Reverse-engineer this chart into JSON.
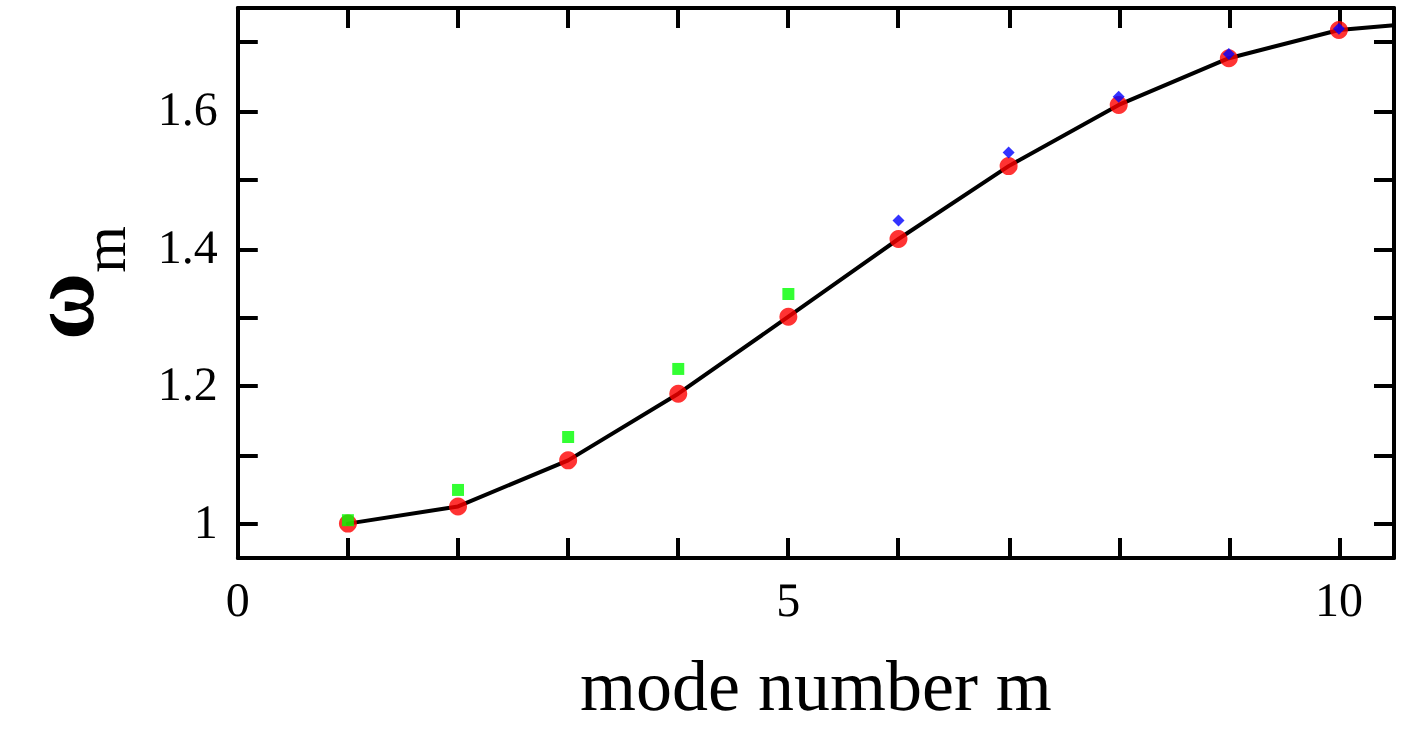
{
  "chart_data": {
    "type": "scatter",
    "xlabel": "mode number m",
    "ylabel": "ω$_{m}$",
    "xlim": [
      0,
      10.5
    ],
    "ylim": [
      0.95,
      1.75
    ],
    "xticks": [
      0,
      {
        "value": 1,
        "label": null
      },
      {
        "value": 2,
        "label": null
      },
      {
        "value": 3,
        "label": null
      },
      {
        "value": 4,
        "label": null
      },
      5,
      {
        "value": 6,
        "label": null
      },
      {
        "value": 7,
        "label": null
      },
      {
        "value": 8,
        "label": null
      },
      {
        "value": 9,
        "label": null
      },
      10
    ],
    "yticks": [
      1,
      {
        "value": 1.1,
        "label": null
      },
      1.2,
      {
        "value": 1.3,
        "label": null
      },
      1.4,
      {
        "value": 1.5,
        "label": null
      },
      1.6,
      {
        "value": 1.7,
        "label": null
      }
    ],
    "grid": false,
    "series": [
      {
        "type": "line",
        "color": "#000000",
        "marker": "none",
        "line_style": "solid",
        "x": [
          1,
          2,
          3,
          4,
          5,
          6,
          7,
          8,
          9,
          10,
          10.5
        ],
        "values": [
          1.0,
          1.025,
          1.092,
          1.189,
          1.301,
          1.414,
          1.52,
          1.609,
          1.677,
          1.718,
          1.725
        ]
      },
      {
        "type": "scatter",
        "color": "#ff0000",
        "marker": "circle",
        "x": [
          1,
          2,
          3,
          4,
          5,
          6,
          7,
          8,
          9,
          10
        ],
        "values": [
          1.0,
          1.025,
          1.092,
          1.189,
          1.301,
          1.414,
          1.52,
          1.609,
          1.677,
          1.718
        ]
      },
      {
        "type": "scatter",
        "color": "#00ff00",
        "marker": "square",
        "x": [
          1,
          2,
          3,
          4,
          5
        ],
        "values": [
          1.005,
          1.049,
          1.126,
          1.225,
          1.334
        ]
      },
      {
        "type": "scatter",
        "color": "#0000ff",
        "marker": "diamond",
        "x": [
          6,
          7,
          8,
          9,
          10
        ],
        "values": [
          1.441,
          1.54,
          1.621,
          1.683,
          1.72
        ]
      }
    ]
  }
}
